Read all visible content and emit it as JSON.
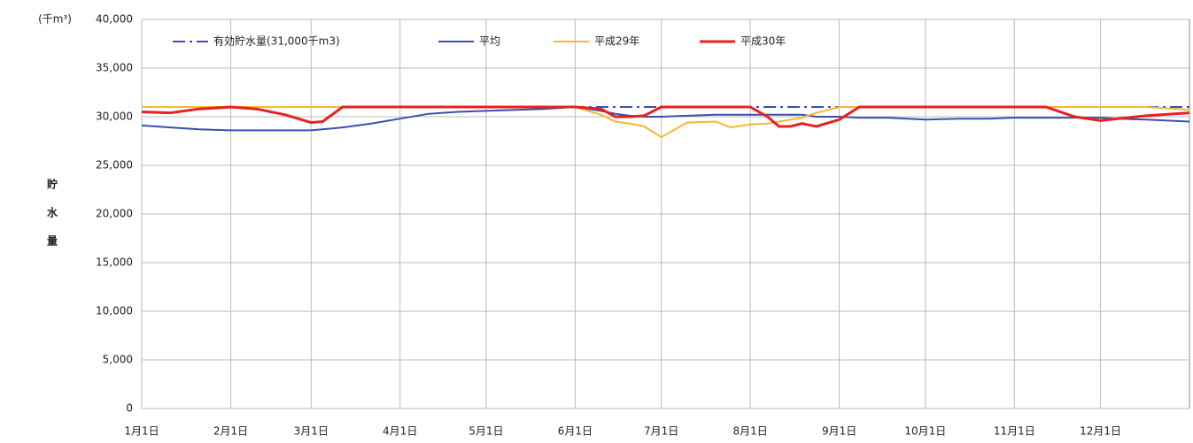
{
  "chart_data": {
    "type": "line",
    "y_label": "貯水量",
    "y_unit": "(千m³)",
    "xlim": [
      0,
      365
    ],
    "xticks": [
      {
        "value": 0,
        "label": "1月1日"
      },
      {
        "value": 31,
        "label": "2月1日"
      },
      {
        "value": 59,
        "label": "3月1日"
      },
      {
        "value": 90,
        "label": "4月1日"
      },
      {
        "value": 120,
        "label": "5月1日"
      },
      {
        "value": 151,
        "label": "6月1日"
      },
      {
        "value": 181,
        "label": "7月1日"
      },
      {
        "value": 212,
        "label": "8月1日"
      },
      {
        "value": 243,
        "label": "9月1日"
      },
      {
        "value": 273,
        "label": "10月1日"
      },
      {
        "value": 304,
        "label": "11月1日"
      },
      {
        "value": 334,
        "label": "12月1日"
      }
    ],
    "ylim": [
      0,
      40000
    ],
    "yticks": [
      0,
      {
        "value": 5000,
        "label": "5,000"
      },
      {
        "value": 10000,
        "label": "10,000"
      },
      {
        "value": 15000,
        "label": "15,000"
      },
      {
        "value": 20000,
        "label": "20,000"
      },
      {
        "value": 25000,
        "label": "25,000"
      },
      {
        "value": 30000,
        "label": "30,000"
      },
      {
        "value": 35000,
        "label": "35,000"
      },
      {
        "value": 40000,
        "label": "40,000"
      }
    ],
    "grid": true,
    "legend": "top-left",
    "x": [
      0,
      10,
      20,
      31,
      40,
      50,
      59,
      63,
      70,
      80,
      90,
      100,
      110,
      120,
      130,
      140,
      151,
      160,
      165,
      170,
      175,
      181,
      190,
      200,
      205,
      212,
      218,
      222,
      226,
      230,
      235,
      243,
      250,
      260,
      273,
      285,
      295,
      304,
      315,
      325,
      334,
      340,
      350,
      365
    ],
    "series": [
      {
        "name": "有効貯水量(31,000千m3)",
        "color": "#3a4fb0",
        "dash": "dashdot",
        "values": [
          31000,
          31000,
          31000,
          31000,
          31000,
          31000,
          31000,
          31000,
          31000,
          31000,
          31000,
          31000,
          31000,
          31000,
          31000,
          31000,
          31000,
          31000,
          31000,
          31000,
          31000,
          31000,
          31000,
          31000,
          31000,
          31000,
          31000,
          31000,
          31000,
          31000,
          31000,
          31000,
          31000,
          31000,
          31000,
          31000,
          31000,
          31000,
          31000,
          31000,
          31000,
          31000,
          31000,
          31000
        ]
      },
      {
        "name": "平均",
        "color": "#3a4fb0",
        "values": [
          29100,
          28900,
          28700,
          28600,
          28600,
          28600,
          28600,
          28700,
          28900,
          29300,
          29800,
          30300,
          30500,
          30600,
          30700,
          30800,
          31000,
          30600,
          30300,
          30100,
          30000,
          30000,
          30100,
          30200,
          30200,
          30200,
          30200,
          30200,
          30200,
          30200,
          30000,
          30000,
          29900,
          29900,
          29700,
          29800,
          29800,
          29900,
          29900,
          29900,
          29900,
          29800,
          29700,
          29500
        ]
      },
      {
        "name": "平成29年",
        "color": "#f5b82e",
        "values": [
          31000,
          31000,
          31000,
          31000,
          31000,
          31000,
          31000,
          31000,
          31000,
          31000,
          31000,
          31000,
          31000,
          31000,
          31000,
          31000,
          31000,
          30200,
          29500,
          29300,
          29000,
          27900,
          29400,
          29500,
          28900,
          29200,
          29300,
          29500,
          29700,
          29900,
          30400,
          31000,
          31000,
          31000,
          31000,
          31000,
          31000,
          31000,
          31000,
          31000,
          31000,
          31000,
          31000,
          30700
        ]
      },
      {
        "name": "平成30年",
        "color": "#e8201e",
        "width": 3,
        "values": [
          30500,
          30400,
          30800,
          31000,
          30800,
          30200,
          29400,
          29500,
          31000,
          31000,
          31000,
          31000,
          31000,
          31000,
          31000,
          31000,
          31000,
          30800,
          30000,
          30000,
          30100,
          31000,
          31000,
          31000,
          31000,
          31000,
          30000,
          29000,
          29000,
          29300,
          29000,
          29700,
          31000,
          31000,
          31000,
          31000,
          31000,
          31000,
          31000,
          30000,
          29600,
          29800,
          30100,
          30400
        ]
      }
    ]
  }
}
